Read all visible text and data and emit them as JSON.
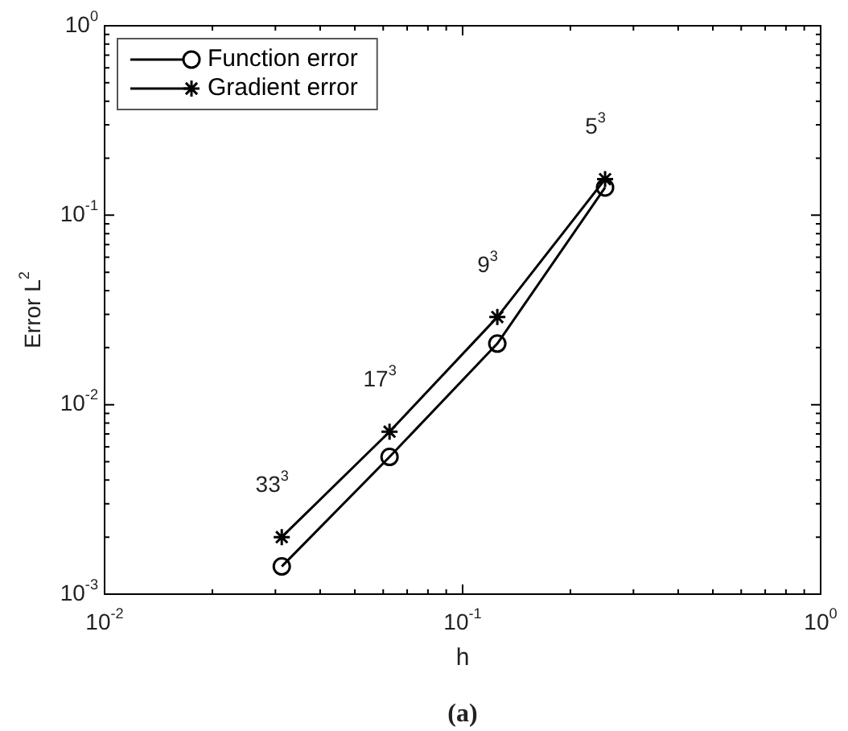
{
  "chart_data": {
    "type": "line",
    "title": "(a)",
    "xlabel": "h",
    "ylabel": "Error L$^{2}$",
    "log": "xy",
    "grid": false,
    "legend": "top left",
    "line_style": "solid",
    "xlim": [
      0.01,
      1
    ],
    "ylim": [
      0.001,
      1
    ],
    "xticks": [
      {
        "value": 0.01,
        "label": "10$^{-2}$"
      },
      {
        "value": 0.02,
        "label": null
      },
      {
        "value": 0.03,
        "label": null
      },
      {
        "value": 0.04,
        "label": null
      },
      {
        "value": 0.05,
        "label": null
      },
      {
        "value": 0.06,
        "label": null
      },
      {
        "value": 0.07,
        "label": null
      },
      {
        "value": 0.08,
        "label": null
      },
      {
        "value": 0.09,
        "label": null
      },
      {
        "value": 0.1,
        "label": "10$^{-1}$"
      },
      {
        "value": 0.2,
        "label": null
      },
      {
        "value": 0.3,
        "label": null
      },
      {
        "value": 0.4,
        "label": null
      },
      {
        "value": 0.5,
        "label": null
      },
      {
        "value": 0.6,
        "label": null
      },
      {
        "value": 0.7,
        "label": null
      },
      {
        "value": 0.8,
        "label": null
      },
      {
        "value": 0.9,
        "label": null
      },
      {
        "value": 1,
        "label": "10$^{0}$"
      }
    ],
    "yticks": [
      {
        "value": 0.001,
        "label": "10$^{-3}$"
      },
      {
        "value": 0.002,
        "label": null
      },
      {
        "value": 0.003,
        "label": null
      },
      {
        "value": 0.004,
        "label": null
      },
      {
        "value": 0.005,
        "label": null
      },
      {
        "value": 0.006,
        "label": null
      },
      {
        "value": 0.007,
        "label": null
      },
      {
        "value": 0.008,
        "label": null
      },
      {
        "value": 0.009,
        "label": null
      },
      {
        "value": 0.01,
        "label": "10$^{-2}$"
      },
      {
        "value": 0.02,
        "label": null
      },
      {
        "value": 0.03,
        "label": null
      },
      {
        "value": 0.04,
        "label": null
      },
      {
        "value": 0.05,
        "label": null
      },
      {
        "value": 0.06,
        "label": null
      },
      {
        "value": 0.07,
        "label": null
      },
      {
        "value": 0.08,
        "label": null
      },
      {
        "value": 0.09,
        "label": null
      },
      {
        "value": 0.1,
        "label": "10$^{-1}$"
      },
      {
        "value": 0.2,
        "label": null
      },
      {
        "value": 0.3,
        "label": null
      },
      {
        "value": 0.4,
        "label": null
      },
      {
        "value": 0.5,
        "label": null
      },
      {
        "value": 0.6,
        "label": null
      },
      {
        "value": 0.7,
        "label": null
      },
      {
        "value": 0.8,
        "label": null
      },
      {
        "value": 0.9,
        "label": null
      },
      {
        "value": 1,
        "label": "10$^{0}$"
      }
    ],
    "x": [
      0.03125,
      0.0625,
      0.125,
      0.25
    ],
    "series": [
      {
        "name": "Function error",
        "color": "#000000",
        "marker": "circle",
        "values": [
          0.0014,
          0.0053,
          0.021,
          0.14
        ]
      },
      {
        "name": "Gradient error",
        "color": "#000000",
        "marker": "cross",
        "values": [
          0.002,
          0.0072,
          0.029,
          0.155
        ]
      }
    ],
    "annotations": [
      "33$^{3}$",
      "17$^{3}$",
      "9$^{3}$",
      "5$^{3}$"
    ]
  }
}
